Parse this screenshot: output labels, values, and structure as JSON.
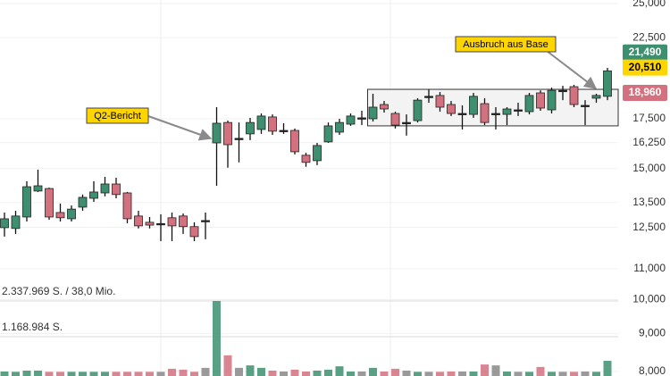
{
  "chart_data": {
    "type": "candlestick",
    "log_y": true,
    "grid": true,
    "ylim": [
      7890,
      25280
    ],
    "yticks": [
      {
        "value": 25000,
        "label": "25,000"
      },
      {
        "value": 22500,
        "label": "22,500"
      },
      {
        "value": 17500,
        "label": "17,500"
      },
      {
        "value": 16250,
        "label": "16,250"
      },
      {
        "value": 15000,
        "label": "15,000"
      },
      {
        "value": 13500,
        "label": "13,500"
      },
      {
        "value": 12500,
        "label": "12,500"
      },
      {
        "value": 11000,
        "label": "11,000"
      },
      {
        "value": 10000,
        "label": "10,000"
      },
      {
        "value": 9000,
        "label": "9,000"
      },
      {
        "value": 8000,
        "label": "8,000"
      }
    ],
    "up_color": "#3d8f6f",
    "down_color": "#d4717f",
    "flat_color": "#222222",
    "candles": {
      "open": [
        12490,
        12460,
        12910,
        13990,
        14100,
        13090,
        12840,
        13310,
        13680,
        13910,
        14300,
        13910,
        12950,
        12700,
        12650,
        12880,
        12950,
        12530,
        12770,
        16240,
        17300,
        16470,
        16700,
        16930,
        17600,
        16880,
        16880,
        15630,
        15370,
        16290,
        16790,
        17210,
        17550,
        17500,
        18290,
        17790,
        17300,
        17400,
        18760,
        18810,
        18290,
        17790,
        17740,
        18340,
        17790,
        17740,
        17990,
        17890,
        18960,
        17990,
        19110,
        19330,
        18240,
        18650,
        18760
      ],
      "high": [
        13090,
        13160,
        14420,
        14950,
        14140,
        13460,
        13380,
        13840,
        14420,
        14620,
        14580,
        13950,
        13160,
        12910,
        13020,
        13090,
        13050,
        12700,
        13090,
        18140,
        17400,
        17300,
        17550,
        17790,
        17740,
        17260,
        16980,
        15750,
        16240,
        17300,
        17500,
        17790,
        17940,
        18910,
        18490,
        17890,
        17740,
        18650,
        19170,
        19010,
        18490,
        18240,
        18960,
        18650,
        18140,
        18140,
        18390,
        18960,
        19110,
        19270,
        19380,
        19440,
        18540,
        18910,
        20490
      ],
      "low": [
        12150,
        12250,
        12730,
        13950,
        12800,
        12730,
        12730,
        13160,
        13530,
        13760,
        13680,
        12660,
        12460,
        12460,
        11980,
        11980,
        12250,
        11980,
        12050,
        14220,
        15040,
        15290,
        16380,
        16700,
        16650,
        16700,
        15670,
        15080,
        15160,
        16240,
        16650,
        17120,
        17160,
        17350,
        17840,
        16980,
        16610,
        17300,
        18390,
        17890,
        17650,
        16930,
        17550,
        17160,
        16930,
        17160,
        17650,
        17740,
        17940,
        17790,
        18540,
        18140,
        17160,
        18390,
        18540
      ],
      "close": [
        12840,
        12950,
        14180,
        14220,
        12910,
        12880,
        13230,
        13720,
        13950,
        14300,
        13840,
        12840,
        12560,
        12590,
        12650,
        12560,
        12530,
        12150,
        12770,
        17260,
        16150,
        16470,
        17300,
        17650,
        16840,
        16880,
        15800,
        15290,
        16110,
        17120,
        17300,
        17650,
        17550,
        18140,
        18040,
        17160,
        17300,
        18540,
        18760,
        18140,
        17790,
        17790,
        18760,
        17300,
        17790,
        18040,
        17990,
        18810,
        18090,
        19110,
        19110,
        18290,
        18240,
        18810,
        20300
      ]
    },
    "volume": {
      "values": [
        30000,
        20000,
        60000,
        60000,
        20000,
        20000,
        20000,
        20000,
        20000,
        20000,
        20000,
        20000,
        20000,
        20000,
        20000,
        120000,
        90000,
        20000,
        150000,
        2337969,
        560000,
        150000,
        230000,
        150000,
        60000,
        30000,
        90000,
        30000,
        60000,
        90000,
        200000,
        30000,
        30000,
        150000,
        30000,
        120000,
        60000,
        20000,
        20000,
        20000,
        30000,
        30000,
        30000,
        260000,
        230000,
        30000,
        20000,
        20000,
        180000,
        20000,
        20000,
        20000,
        30000,
        20000,
        380000
      ],
      "lim": [
        0,
        2337969
      ],
      "ticks": [
        {
          "value": 2337969,
          "label": "2.337.969 S. / 38,0 Mio."
        },
        {
          "value": 1168984,
          "label": "1.168.984 S."
        }
      ]
    },
    "price_tags": [
      {
        "value": 21490,
        "label": "21,490",
        "color": "#3d8f6f",
        "text_color": "#ffffff"
      },
      {
        "value": 20510,
        "label": "20,510",
        "color": "#ffd500",
        "text_color": "#000000"
      },
      {
        "value": 18960,
        "label": "18,960",
        "color": "#d4717f",
        "text_color": "#ffffff"
      }
    ],
    "base_zone": {
      "low": 17120,
      "high": 19170
    },
    "annotations": [
      {
        "text": "Q2-Bericht"
      },
      {
        "text": "Ausbruch aus Base"
      }
    ]
  }
}
